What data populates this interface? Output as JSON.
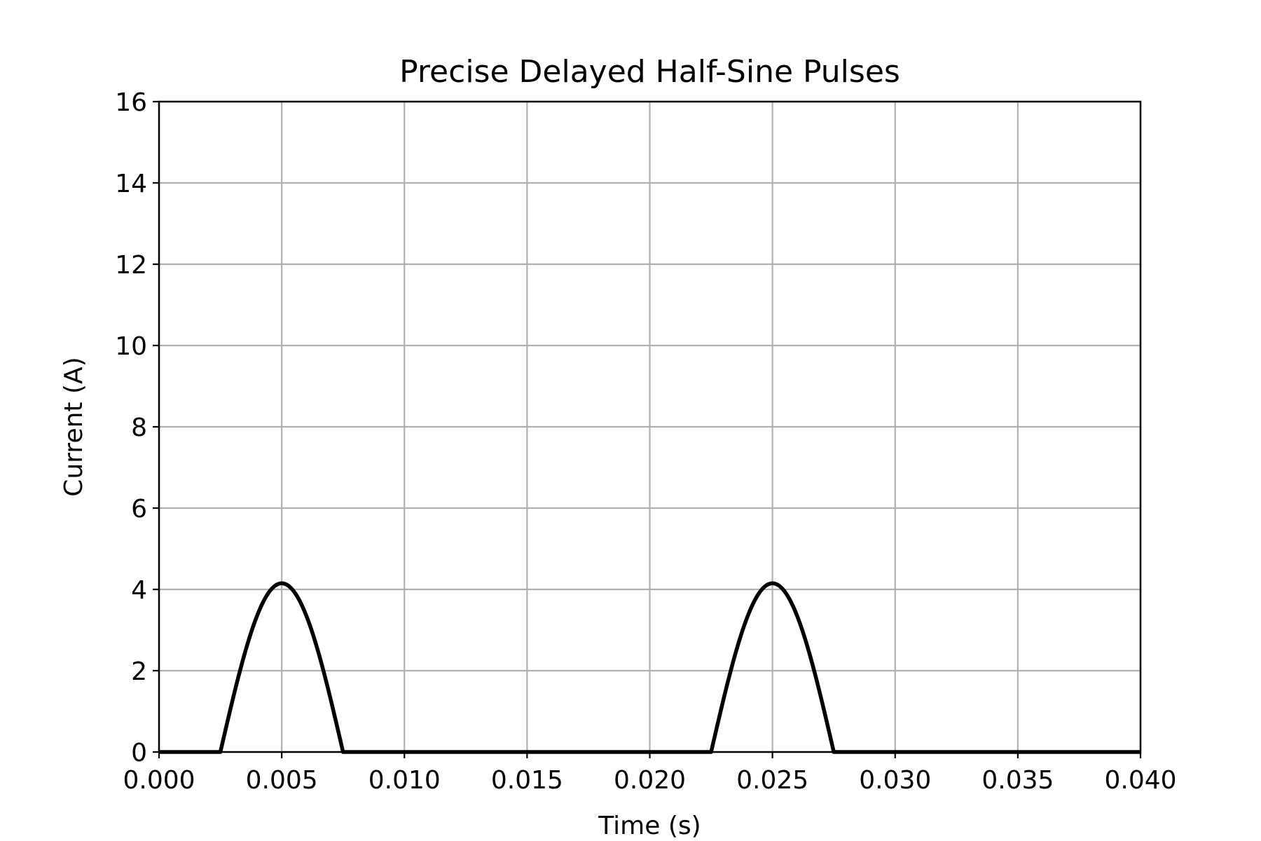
{
  "chart_data": {
    "type": "line",
    "title": "Precise Delayed Half-Sine Pulses",
    "xlabel": "Time (s)",
    "ylabel": "Current (A)",
    "xlim": [
      0.0,
      0.04
    ],
    "ylim": [
      0,
      16
    ],
    "x_ticks": [
      "0.000",
      "0.005",
      "0.010",
      "0.015",
      "0.020",
      "0.025",
      "0.030",
      "0.035",
      "0.040"
    ],
    "y_ticks": [
      "0",
      "2",
      "4",
      "6",
      "8",
      "10",
      "12",
      "14",
      "16"
    ],
    "grid": true,
    "legend": "none",
    "series": [
      {
        "color": "#000000",
        "x": [
          0.0,
          0.0025,
          0.003,
          0.0035,
          0.004,
          0.0045,
          0.005,
          0.0055,
          0.006,
          0.0065,
          0.007,
          0.0075,
          0.0225,
          0.023,
          0.0235,
          0.024,
          0.0245,
          0.025,
          0.0255,
          0.026,
          0.0265,
          0.027,
          0.0275,
          0.04
        ],
        "y": [
          0,
          0,
          1.28,
          2.44,
          3.36,
          3.95,
          4.15,
          3.95,
          3.36,
          2.44,
          1.28,
          0,
          0,
          1.28,
          2.44,
          3.36,
          3.95,
          4.15,
          3.95,
          3.36,
          2.44,
          1.28,
          0,
          0
        ]
      }
    ]
  }
}
